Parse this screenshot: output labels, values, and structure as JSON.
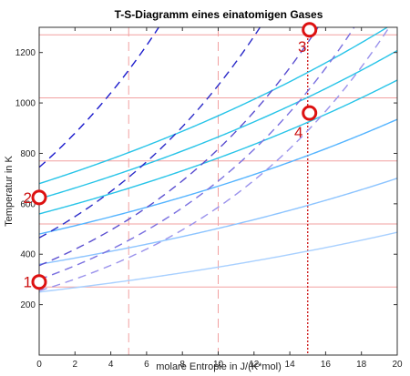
{
  "chart_data": {
    "type": "line",
    "title": "T-S-Diagramm eines einatomigen Gases",
    "xlabel": "molare Entropie in J/(K*mol)",
    "ylabel": "Temperatur in K",
    "xlim": [
      0,
      20
    ],
    "ylim": [
      0,
      1300
    ],
    "xticks": [
      0,
      2,
      4,
      6,
      8,
      10,
      12,
      14,
      16,
      18,
      20
    ],
    "yticks": [
      200,
      400,
      600,
      800,
      1000,
      1200
    ],
    "grid": false,
    "curve_shape": "exponential T = T0 * exp(s / k)",
    "series": [
      {
        "style": "solid",
        "color": "#27c4e8",
        "T0": 680,
        "k": 30.0
      },
      {
        "style": "solid",
        "color": "#27c4e8",
        "T0": 620,
        "k": 30.0
      },
      {
        "style": "solid",
        "color": "#27c4e8",
        "T0": 560,
        "k": 30.0
      },
      {
        "style": "solid",
        "color": "#54b4ff",
        "T0": 480,
        "k": 30.0
      },
      {
        "style": "solid",
        "color": "#8cc4ff",
        "T0": 360,
        "k": 30.0
      },
      {
        "style": "solid",
        "color": "#a8d0ff",
        "T0": 250,
        "k": 30.0
      },
      {
        "style": "dashed",
        "color": "#1a1acc",
        "T0": 745,
        "k": 12.0
      },
      {
        "style": "dashed",
        "color": "#2a2ac8",
        "T0": 465,
        "k": 12.0
      },
      {
        "style": "dashed",
        "color": "#5a4ed0",
        "T0": 355,
        "k": 12.0
      },
      {
        "style": "dashed",
        "color": "#7a70e0",
        "T0": 300,
        "k": 12.0
      },
      {
        "style": "dashed",
        "color": "#9a92ec",
        "T0": 255,
        "k": 12.0
      }
    ],
    "reference_lines": {
      "horizontal": [
        {
          "value": 1270,
          "color": "#f2a0a0"
        },
        {
          "value": 1020,
          "color": "#f2a0a0"
        },
        {
          "value": 770,
          "color": "#f2a0a0"
        },
        {
          "value": 520,
          "color": "#f2a0a0"
        },
        {
          "value": 270,
          "color": "#f2a0a0"
        }
      ],
      "vertical": [
        {
          "value": 5,
          "color": "#f2a0a0",
          "style": "dashed"
        },
        {
          "value": 10,
          "color": "#f2a0a0",
          "style": "dashed"
        },
        {
          "value": 15,
          "color": "#cc1111",
          "style": "dotted"
        }
      ]
    },
    "annotations": [
      {
        "label": "1",
        "x": 0,
        "y": 290
      },
      {
        "label": "2",
        "x": 0,
        "y": 625
      },
      {
        "label": "3",
        "x": 15.1,
        "y": 1290
      },
      {
        "label": "4",
        "x": 15.1,
        "y": 960
      }
    ],
    "marker_color": "#dd1111"
  }
}
